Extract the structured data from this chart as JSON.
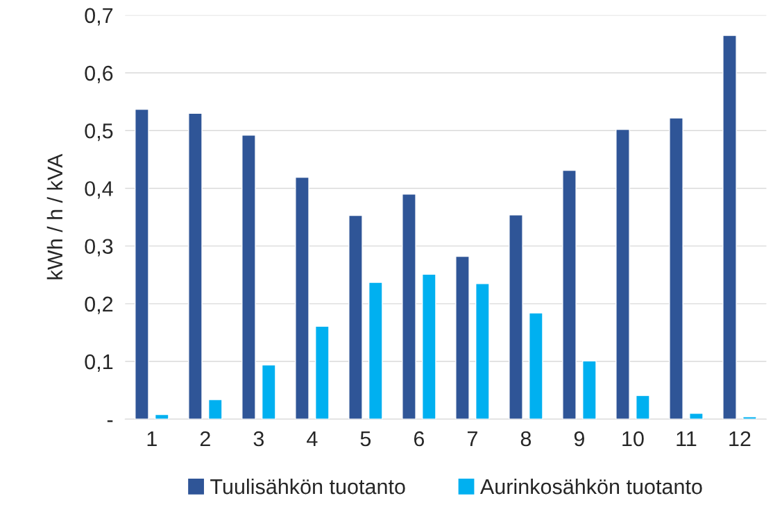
{
  "chart_data": {
    "type": "bar",
    "ylabel": "kWh / h / kVA",
    "categories": [
      "1",
      "2",
      "3",
      "4",
      "5",
      "6",
      "7",
      "8",
      "9",
      "10",
      "11",
      "12"
    ],
    "series": [
      {
        "name": "Tuulisähkön tuotanto",
        "color": "#2f5597",
        "values": [
          0.537,
          0.53,
          0.492,
          0.419,
          0.353,
          0.39,
          0.282,
          0.354,
          0.431,
          0.502,
          0.522,
          0.665
        ]
      },
      {
        "name": "Aurinkosähkön tuotanto",
        "color": "#00b0f0",
        "values": [
          0.008,
          0.034,
          0.094,
          0.161,
          0.237,
          0.251,
          0.235,
          0.184,
          0.101,
          0.041,
          0.01,
          0.004
        ]
      }
    ],
    "ylim": [
      0,
      0.7
    ],
    "yticks": [
      {
        "value": 0,
        "label": "-"
      },
      {
        "value": 0.1,
        "label": "0,1"
      },
      {
        "value": 0.2,
        "label": "0,2"
      },
      {
        "value": 0.3,
        "label": "0,3"
      },
      {
        "value": 0.4,
        "label": "0,4"
      },
      {
        "value": 0.5,
        "label": "0,5"
      },
      {
        "value": 0.6,
        "label": "0,6"
      },
      {
        "value": 0.7,
        "label": "0,7"
      }
    ],
    "grid": "y",
    "legend": "bottom"
  }
}
